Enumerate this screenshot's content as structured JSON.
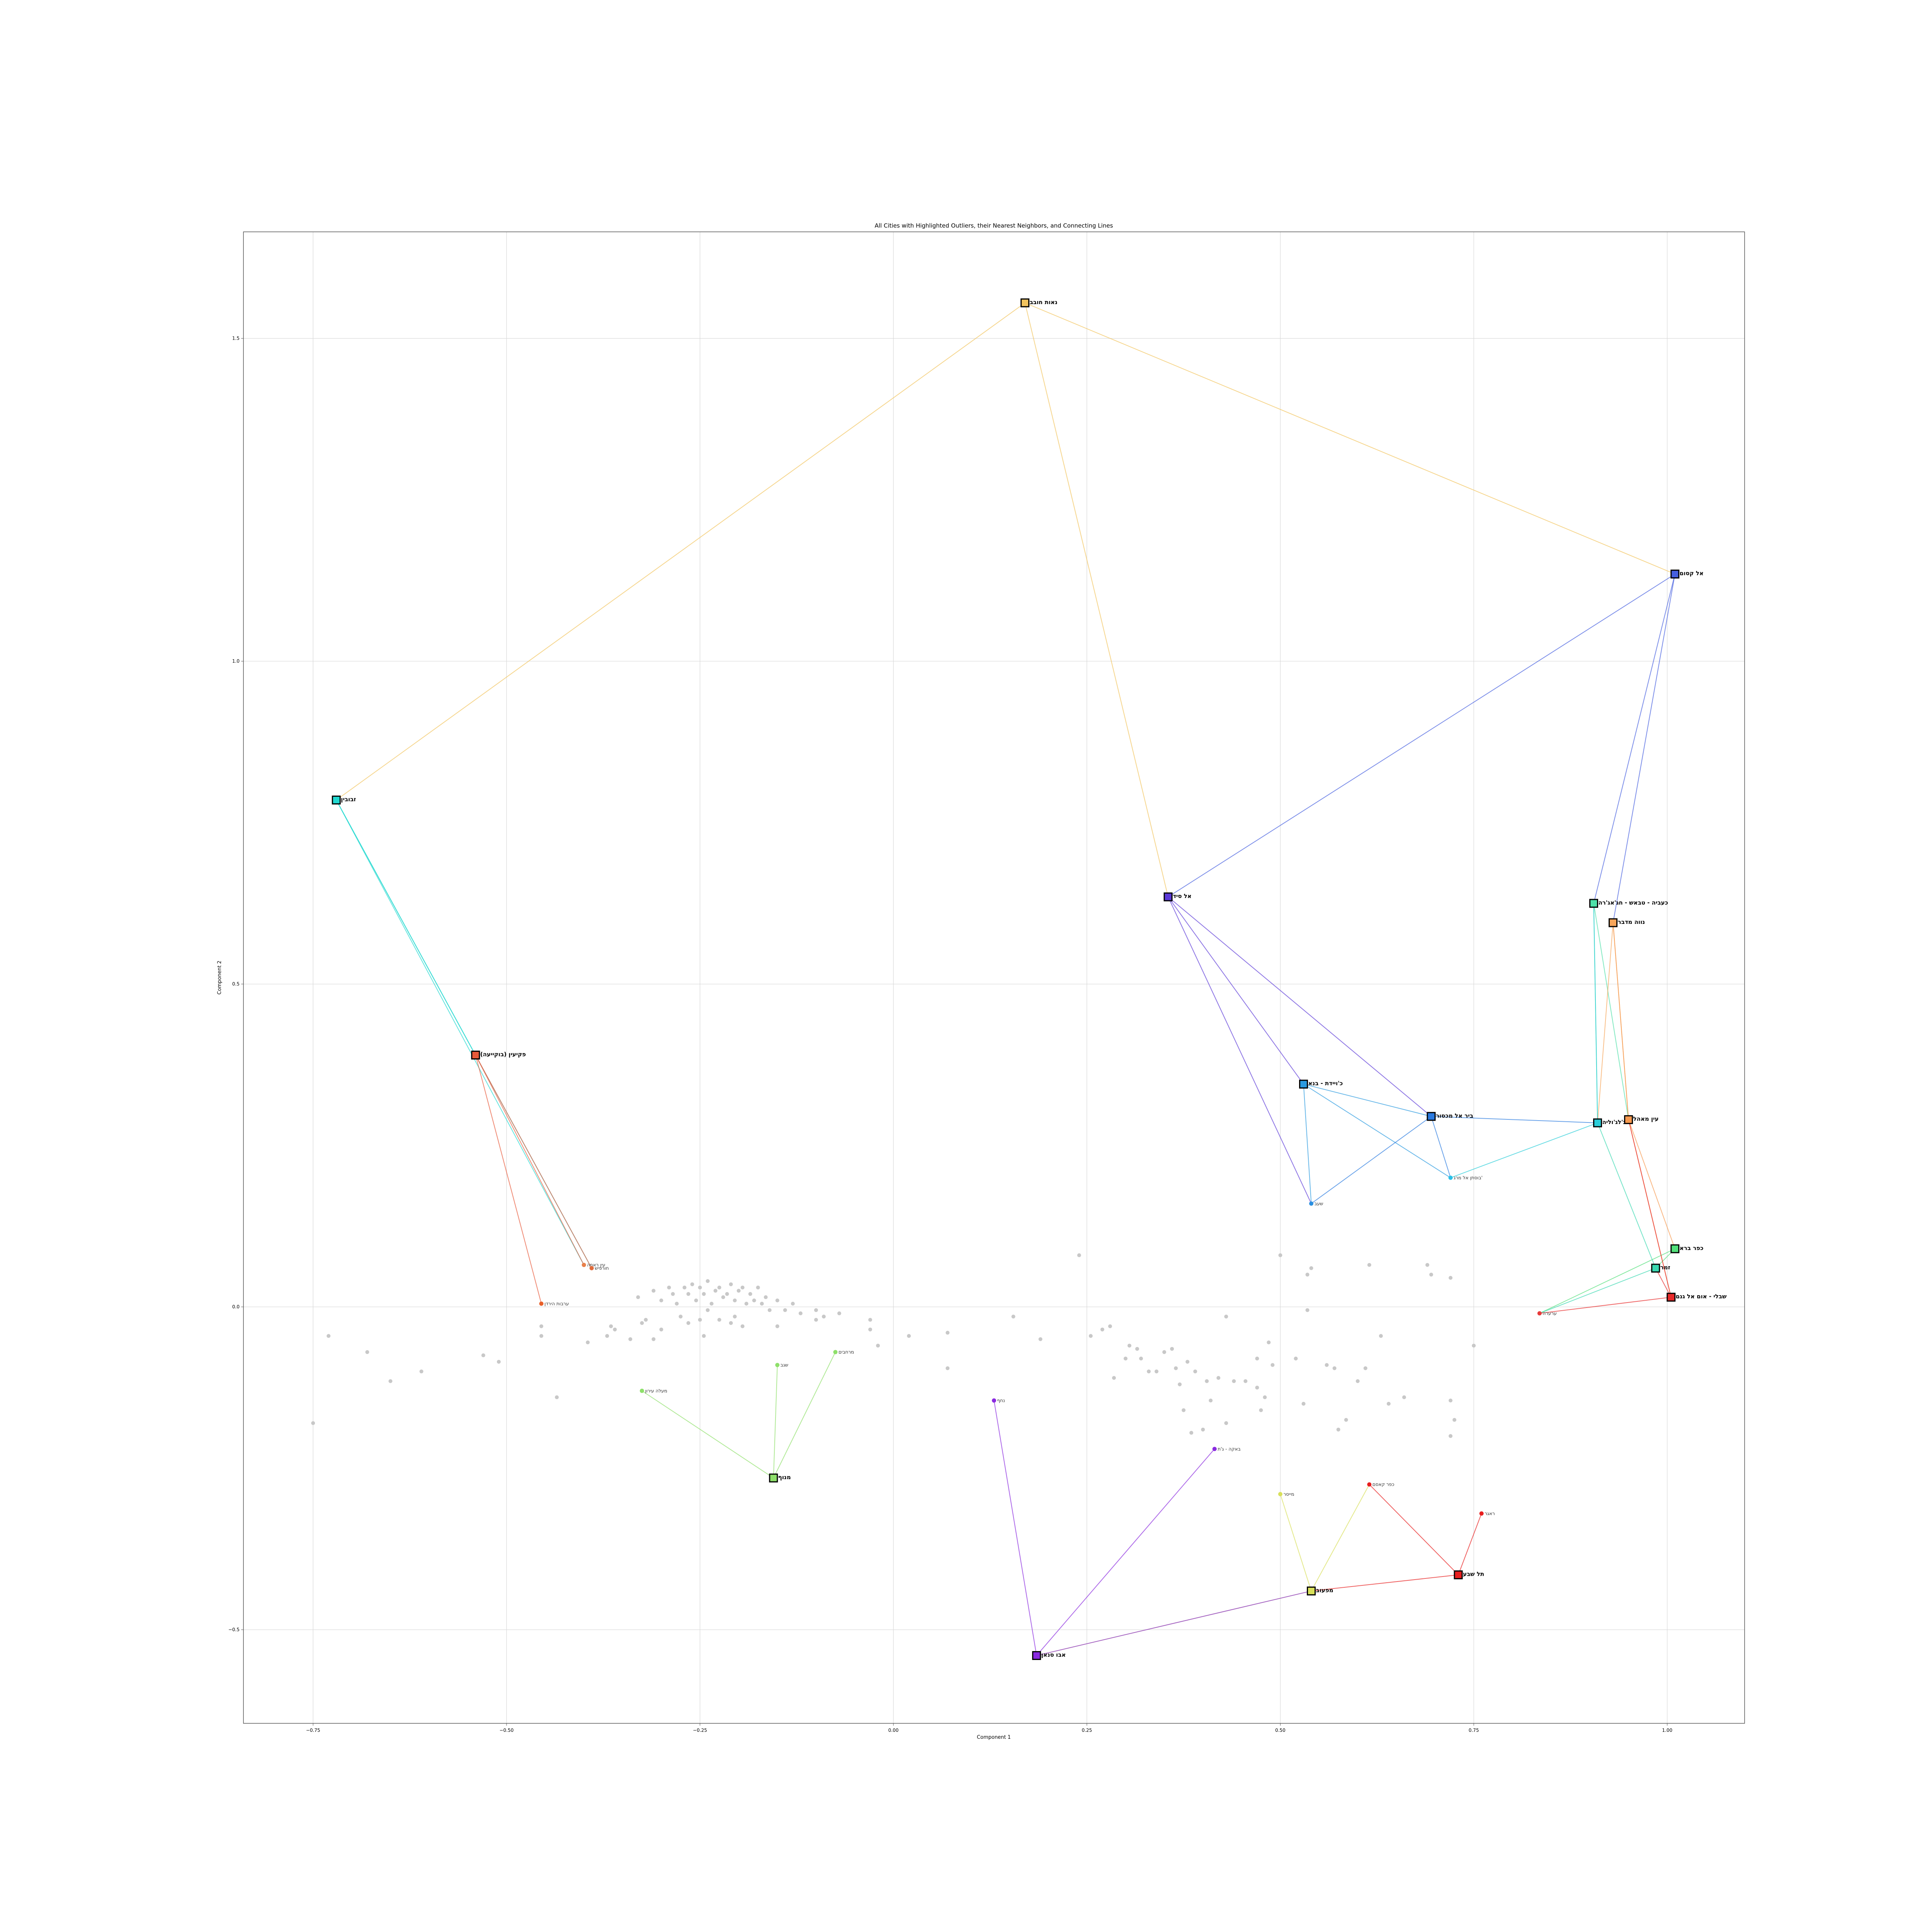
{
  "chart_data": {
    "type": "scatter",
    "title": "All Cities with Highlighted Outliers, their Nearest Neighbors, and Connecting Lines",
    "xlabel": "Component 1",
    "ylabel": "Component 2",
    "xlim": [
      -0.84,
      1.1
    ],
    "ylim": [
      -0.645,
      1.665
    ],
    "xticks": [
      -0.75,
      -0.5,
      -0.25,
      0.0,
      0.25,
      0.5,
      0.75,
      1.0
    ],
    "xtick_labels": [
      "−0.75",
      "−0.50",
      "−0.25",
      "0.00",
      "0.25",
      "0.50",
      "0.75",
      "1.00"
    ],
    "yticks": [
      -0.5,
      0.0,
      0.5,
      1.0,
      1.5
    ],
    "ytick_labels": [
      "−0.5",
      "0.0",
      "0.5",
      "1.0",
      "1.5"
    ],
    "grid": true,
    "colors": {
      "background_points": "#c8c8c8",
      "grid": "#d8d8d8",
      "axes": "#555555"
    },
    "background_points": [
      [
        -0.75,
        -0.18
      ],
      [
        -0.73,
        -0.045
      ],
      [
        -0.68,
        -0.07
      ],
      [
        -0.65,
        -0.115
      ],
      [
        -0.61,
        -0.1
      ],
      [
        -0.53,
        -0.075
      ],
      [
        -0.51,
        -0.085
      ],
      [
        -0.455,
        -0.045
      ],
      [
        -0.455,
        -0.03
      ],
      [
        -0.435,
        -0.14
      ],
      [
        -0.395,
        -0.055
      ],
      [
        -0.37,
        -0.045
      ],
      [
        -0.365,
        -0.03
      ],
      [
        -0.36,
        -0.035
      ],
      [
        -0.34,
        -0.05
      ],
      [
        -0.325,
        -0.025
      ],
      [
        -0.32,
        -0.02
      ],
      [
        -0.31,
        -0.05
      ],
      [
        -0.3,
        -0.035
      ],
      [
        -0.33,
        0.015
      ],
      [
        -0.31,
        0.025
      ],
      [
        -0.3,
        0.01
      ],
      [
        -0.29,
        0.03
      ],
      [
        -0.285,
        0.02
      ],
      [
        -0.28,
        0.005
      ],
      [
        -0.275,
        -0.015
      ],
      [
        -0.27,
        0.03
      ],
      [
        -0.265,
        0.02
      ],
      [
        -0.26,
        0.035
      ],
      [
        -0.255,
        0.01
      ],
      [
        -0.25,
        0.03
      ],
      [
        -0.245,
        0.02
      ],
      [
        -0.24,
        0.04
      ],
      [
        -0.235,
        0.005
      ],
      [
        -0.23,
        0.025
      ],
      [
        -0.225,
        0.03
      ],
      [
        -0.22,
        0.015
      ],
      [
        -0.215,
        0.02
      ],
      [
        -0.21,
        0.035
      ],
      [
        -0.205,
        0.01
      ],
      [
        -0.2,
        0.025
      ],
      [
        -0.195,
        0.03
      ],
      [
        -0.19,
        0.005
      ],
      [
        -0.185,
        0.02
      ],
      [
        -0.18,
        0.01
      ],
      [
        -0.175,
        0.03
      ],
      [
        -0.17,
        0.005
      ],
      [
        -0.165,
        0.015
      ],
      [
        -0.16,
        -0.005
      ],
      [
        -0.15,
        0.01
      ],
      [
        -0.14,
        -0.005
      ],
      [
        -0.13,
        0.005
      ],
      [
        -0.12,
        -0.01
      ],
      [
        -0.1,
        -0.005
      ],
      [
        -0.09,
        -0.015
      ],
      [
        -0.07,
        -0.01
      ],
      [
        -0.265,
        -0.025
      ],
      [
        -0.245,
        -0.045
      ],
      [
        -0.225,
        -0.02
      ],
      [
        -0.205,
        -0.015
      ],
      [
        -0.195,
        -0.03
      ],
      [
        -0.24,
        -0.005
      ],
      [
        -0.25,
        -0.02
      ],
      [
        -0.21,
        -0.025
      ],
      [
        -0.1,
        -0.02
      ],
      [
        -0.03,
        -0.035
      ],
      [
        -0.03,
        -0.02
      ],
      [
        0.02,
        -0.045
      ],
      [
        0.07,
        -0.04
      ],
      [
        0.07,
        -0.095
      ],
      [
        0.155,
        -0.015
      ],
      [
        0.19,
        -0.05
      ],
      [
        0.24,
        0.08
      ],
      [
        0.255,
        -0.045
      ],
      [
        0.27,
        -0.035
      ],
      [
        0.28,
        -0.03
      ],
      [
        0.285,
        -0.11
      ],
      [
        0.3,
        -0.08
      ],
      [
        0.305,
        -0.06
      ],
      [
        0.315,
        -0.065
      ],
      [
        0.32,
        -0.08
      ],
      [
        0.33,
        -0.1
      ],
      [
        0.34,
        -0.1
      ],
      [
        0.35,
        -0.07
      ],
      [
        0.36,
        -0.065
      ],
      [
        0.365,
        -0.095
      ],
      [
        0.37,
        -0.12
      ],
      [
        0.375,
        -0.16
      ],
      [
        0.38,
        -0.085
      ],
      [
        0.385,
        -0.195
      ],
      [
        0.39,
        -0.1
      ],
      [
        0.4,
        -0.19
      ],
      [
        0.405,
        -0.115
      ],
      [
        0.41,
        -0.145
      ],
      [
        0.42,
        -0.11
      ],
      [
        0.43,
        -0.18
      ],
      [
        0.43,
        -0.015
      ],
      [
        0.44,
        -0.115
      ],
      [
        0.455,
        -0.115
      ],
      [
        0.47,
        -0.08
      ],
      [
        0.47,
        -0.125
      ],
      [
        0.475,
        -0.16
      ],
      [
        0.48,
        -0.14
      ],
      [
        0.485,
        -0.055
      ],
      [
        0.49,
        -0.09
      ],
      [
        0.5,
        0.08
      ],
      [
        0.52,
        -0.08
      ],
      [
        0.53,
        -0.15
      ],
      [
        0.535,
        0.05
      ],
      [
        0.535,
        -0.005
      ],
      [
        0.56,
        -0.09
      ],
      [
        0.57,
        -0.095
      ],
      [
        0.575,
        -0.19
      ],
      [
        0.585,
        -0.175
      ],
      [
        0.6,
        -0.115
      ],
      [
        0.61,
        -0.095
      ],
      [
        0.615,
        0.065
      ],
      [
        0.63,
        -0.045
      ],
      [
        0.64,
        -0.15
      ],
      [
        0.66,
        -0.14
      ],
      [
        0.69,
        0.065
      ],
      [
        0.695,
        0.05
      ],
      [
        0.72,
        0.045
      ],
      [
        0.72,
        -0.145
      ],
      [
        0.72,
        -0.2
      ],
      [
        0.725,
        -0.175
      ],
      [
        0.75,
        -0.06
      ],
      [
        0.54,
        0.06
      ],
      [
        -0.02,
        -0.06
      ],
      [
        -0.15,
        -0.03
      ]
    ],
    "outliers": [
      {
        "name": "נאות חובב",
        "x": 0.17,
        "y": 1.555,
        "color": "#f2c45e",
        "neighbors": [
          [
            -0.72,
            0.785
          ],
          [
            1.01,
            1.135
          ],
          [
            0.355,
            0.635
          ]
        ]
      },
      {
        "name": "אל קסום",
        "x": 1.01,
        "y": 1.135,
        "color": "#4660e0",
        "neighbors": [
          [
            0.355,
            0.635
          ],
          [
            0.905,
            0.625
          ],
          [
            0.93,
            0.595
          ]
        ]
      },
      {
        "name": "זבובין",
        "x": -0.72,
        "y": 0.785,
        "color": "#22d8d0",
        "neighbors": [
          [
            -0.4,
            0.065
          ],
          [
            -0.39,
            0.06
          ],
          [
            -0.54,
            0.39
          ]
        ]
      },
      {
        "name": "אל סיד",
        "x": 0.355,
        "y": 0.635,
        "color": "#5c3ad8",
        "neighbors": [
          [
            0.53,
            0.345
          ],
          [
            0.695,
            0.295
          ],
          [
            0.54,
            0.16
          ]
        ]
      },
      {
        "name": "כעביה - טבאש - חג'אג'רה",
        "x": 0.905,
        "y": 0.625,
        "color": "#4ee0a8",
        "neighbors": [
          [
            0.91,
            0.285
          ],
          [
            0.95,
            0.29
          ]
        ]
      },
      {
        "name": "נווה מדבר",
        "x": 0.93,
        "y": 0.595,
        "color": "#f7a55a",
        "neighbors": [
          [
            0.91,
            0.285
          ],
          [
            0.95,
            0.29
          ]
        ]
      },
      {
        "name": "פקיעין (בוקייעה)",
        "x": -0.54,
        "y": 0.39,
        "color": "#e85a3a",
        "neighbors": [
          [
            -0.4,
            0.065
          ],
          [
            -0.39,
            0.06
          ],
          [
            -0.455,
            0.005
          ]
        ]
      },
      {
        "name": "כ'ויידת - בנא",
        "x": 0.53,
        "y": 0.345,
        "color": "#2a9ae0",
        "neighbors": [
          [
            0.695,
            0.295
          ],
          [
            0.54,
            0.16
          ],
          [
            0.72,
            0.2
          ]
        ]
      },
      {
        "name": "ביר אל מכסור",
        "x": 0.695,
        "y": 0.295,
        "color": "#2a7ae0",
        "neighbors": [
          [
            0.54,
            0.16
          ],
          [
            0.72,
            0.2
          ],
          [
            0.91,
            0.285
          ]
        ]
      },
      {
        "name": "עין מאהל",
        "x": 0.95,
        "y": 0.29,
        "color": "#f79a50",
        "neighbors": [
          [
            1.01,
            0.09
          ],
          [
            1.005,
            0.015
          ],
          [
            0.93,
            0.595
          ]
        ]
      },
      {
        "name": "ג'לג'וליה",
        "x": 0.91,
        "y": 0.285,
        "color": "#2acdd8",
        "neighbors": [
          [
            0.72,
            0.2
          ],
          [
            0.905,
            0.625
          ]
        ]
      },
      {
        "name": "כפר ברא",
        "x": 1.01,
        "y": 0.09,
        "color": "#52e07a",
        "neighbors": [
          [
            0.835,
            -0.01
          ],
          [
            0.985,
            0.06
          ]
        ]
      },
      {
        "name": "זמר",
        "x": 0.985,
        "y": 0.06,
        "color": "#3ad8b0",
        "neighbors": [
          [
            0.835,
            -0.01
          ],
          [
            0.91,
            0.285
          ]
        ]
      },
      {
        "name": "שבלי - אום אל גנם",
        "x": 1.005,
        "y": 0.015,
        "color": "#e82a2a",
        "neighbors": [
          [
            0.835,
            -0.01
          ],
          [
            0.985,
            0.06
          ],
          [
            0.95,
            0.29
          ]
        ]
      },
      {
        "name": "מנוף",
        "x": -0.155,
        "y": -0.265,
        "color": "#8ee06a",
        "neighbors": [
          [
            -0.325,
            -0.13
          ],
          [
            -0.15,
            -0.09
          ],
          [
            -0.075,
            -0.07
          ]
        ]
      },
      {
        "name": "תל שבע",
        "x": 0.73,
        "y": -0.415,
        "color": "#e81e1e",
        "neighbors": [
          [
            0.615,
            -0.275
          ],
          [
            0.76,
            -0.32
          ],
          [
            0.54,
            -0.44
          ]
        ]
      },
      {
        "name": "מפעוב",
        "x": 0.54,
        "y": -0.44,
        "color": "#d8e05a",
        "neighbors": [
          [
            0.5,
            -0.29
          ],
          [
            0.615,
            -0.275
          ],
          [
            0.185,
            -0.54
          ]
        ]
      },
      {
        "name": "אבו סנאן",
        "x": 0.185,
        "y": -0.54,
        "color": "#8a2ae0",
        "neighbors": [
          [
            0.13,
            -0.145
          ],
          [
            0.415,
            -0.22
          ],
          [
            0.54,
            -0.44
          ]
        ]
      }
    ],
    "neighbors": [
      {
        "name": "עין ראפה",
        "x": -0.4,
        "y": 0.065,
        "color": "#e8804a"
      },
      {
        "name": "חורפיש",
        "x": -0.39,
        "y": 0.06,
        "color": "#e06a3a"
      },
      {
        "name": "ערבות הירדן",
        "x": -0.455,
        "y": 0.005,
        "color": "#e8602a"
      },
      {
        "name": "שעב",
        "x": 0.54,
        "y": 0.16,
        "color": "#2a90e0"
      },
      {
        "name": "בוסתן אל מרג'",
        "x": 0.72,
        "y": 0.2,
        "color": "#2ac0e8"
      },
      {
        "name": "ערערה",
        "x": 0.835,
        "y": -0.01,
        "color": "#e83a3a"
      },
      {
        "name": "מעלה עירון",
        "x": -0.325,
        "y": -0.13,
        "color": "#8ee06a"
      },
      {
        "name": "שגב",
        "x": -0.15,
        "y": -0.09,
        "color": "#8ee06a"
      },
      {
        "name": "מרחבים",
        "x": -0.075,
        "y": -0.07,
        "color": "#8ee06a"
      },
      {
        "name": "נחף",
        "x": 0.13,
        "y": -0.145,
        "color": "#8a2ae0"
      },
      {
        "name": "באקה - ג'ת",
        "x": 0.415,
        "y": -0.22,
        "color": "#8a2ae0"
      },
      {
        "name": "מייסר",
        "x": 0.5,
        "y": -0.29,
        "color": "#d8e05a"
      },
      {
        "name": "כפר קאסם",
        "x": 0.615,
        "y": -0.275,
        "color": "#e81e1e"
      },
      {
        "name": "ראגר",
        "x": 0.76,
        "y": -0.32,
        "color": "#e81e1e"
      }
    ]
  }
}
